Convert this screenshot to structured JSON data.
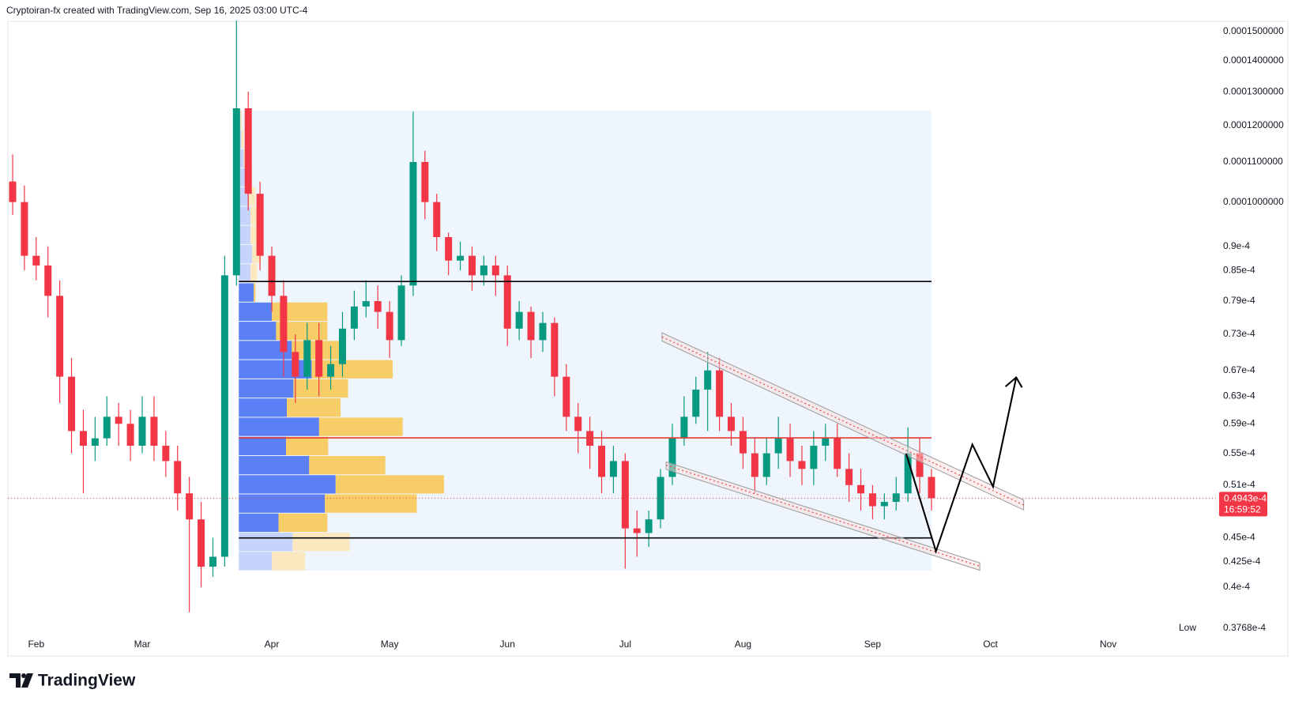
{
  "header": {
    "text": "Cryptoiran-fx created with TradingView.com, Sep 16, 2025 03:00 UTC-4"
  },
  "footer": {
    "logo": "TradingView"
  },
  "chart_data": {
    "type": "candlestick",
    "log_scale": true,
    "grid": false,
    "up_color": "#089981",
    "down_color": "#f23645",
    "categories": [
      null,
      null,
      "Feb",
      null,
      null,
      null,
      null,
      null,
      null,
      null,
      null,
      "Mar",
      null,
      null,
      null,
      null,
      null,
      null,
      null,
      null,
      null,
      null,
      "Apr",
      null,
      null,
      null,
      null,
      null,
      null,
      null,
      null,
      null,
      "May",
      null,
      null,
      null,
      null,
      null,
      null,
      null,
      null,
      null,
      "Jun",
      null,
      null,
      null,
      null,
      null,
      null,
      null,
      null,
      null,
      "Jul",
      null,
      null,
      null,
      null,
      null,
      null,
      null,
      null,
      null,
      "Aug",
      null,
      null,
      null,
      null,
      null,
      null,
      null,
      null,
      null,
      null,
      "Sep",
      null,
      null,
      null,
      null,
      null,
      null,
      null,
      null,
      null,
      "Oct",
      null,
      null,
      null,
      null,
      null,
      null,
      null,
      null,
      null,
      "Nov",
      null,
      null,
      null,
      null
    ],
    "open": [
      0.000105,
      0.0001,
      8.8e-05,
      8.6e-05,
      8e-05,
      6.6e-05,
      5.8e-05,
      5.6e-05,
      5.7e-05,
      6e-05,
      5.9e-05,
      5.6e-05,
      6e-05,
      5.6e-05,
      5.4e-05,
      5e-05,
      4.7e-05,
      4.2e-05,
      4.3e-05,
      8.4e-05,
      0.000125,
      0.000102,
      8.8e-05,
      8e-05,
      7e-05,
      6.6e-05,
      7.2e-05,
      6.6e-05,
      6.8e-05,
      7.4e-05,
      7.8e-05,
      7.9e-05,
      7.7e-05,
      7.2e-05,
      8.2e-05,
      0.00011,
      0.0001,
      9.2e-05,
      8.7e-05,
      8.8e-05,
      8.4e-05,
      8.6e-05,
      8.4e-05,
      7.4e-05,
      7.7e-05,
      7.2e-05,
      7.5e-05,
      6.6e-05,
      6e-05,
      5.8e-05,
      5.6e-05,
      5.2e-05,
      5.4e-05,
      4.6e-05,
      4.55e-05,
      4.7e-05,
      5.2e-05,
      5.7e-05,
      6e-05,
      6.4e-05,
      6.7e-05,
      6e-05,
      5.8e-05,
      5.5e-05,
      5.2e-05,
      5.5e-05,
      5.7e-05,
      5.4e-05,
      5.3e-05,
      5.6e-05,
      5.7e-05,
      5.3e-05,
      5.1e-05,
      5e-05,
      4.85e-05,
      4.9e-05,
      5e-05,
      5.5e-05,
      5.2e-05,
      null,
      null,
      null,
      null,
      null,
      null,
      null,
      null,
      null,
      null,
      null,
      null,
      null,
      null,
      null,
      null,
      null,
      null,
      null
    ],
    "high": [
      0.000112,
      0.000104,
      9.2e-05,
      9e-05,
      8.3e-05,
      6.9e-05,
      6.1e-05,
      6e-05,
      6.3e-05,
      6.2e-05,
      6.1e-05,
      6.3e-05,
      6.3e-05,
      5.8e-05,
      5.6e-05,
      5.2e-05,
      4.9e-05,
      4.5e-05,
      8.8e-05,
      0.000154,
      0.00013,
      0.000105,
      9e-05,
      8.3e-05,
      7.3e-05,
      7.5e-05,
      7.5e-05,
      7.1e-05,
      7.7e-05,
      8.1e-05,
      8.3e-05,
      8.2e-05,
      7.9e-05,
      8.4e-05,
      0.000124,
      0.000113,
      0.000102,
      9.3e-05,
      9.1e-05,
      9e-05,
      8.8e-05,
      8.8e-05,
      8.6e-05,
      7.9e-05,
      7.8e-05,
      7.7e-05,
      7.6e-05,
      6.8e-05,
      6.2e-05,
      6e-05,
      5.8e-05,
      5.6e-05,
      5.5e-05,
      4.8e-05,
      4.8e-05,
      5.3e-05,
      5.9e-05,
      6.3e-05,
      6.6e-05,
      7e-05,
      6.9e-05,
      6.2e-05,
      6e-05,
      5.7e-05,
      5.7e-05,
      6e-05,
      5.9e-05,
      5.6e-05,
      5.8e-05,
      5.9e-05,
      5.9e-05,
      5.5e-05,
      5.3e-05,
      5.1e-05,
      5e-05,
      5.2e-05,
      5.85e-05,
      5.7e-05,
      5.3e-05,
      null,
      null,
      null,
      null,
      null,
      null,
      null,
      null,
      null,
      null,
      null,
      null,
      null,
      null,
      null,
      null,
      null,
      null,
      null
    ],
    "low": [
      9.7e-05,
      8.5e-05,
      8.3e-05,
      7.6e-05,
      6.2e-05,
      5.5e-05,
      5e-05,
      5.4e-05,
      5.6e-05,
      5.6e-05,
      5.4e-05,
      5.5e-05,
      5.4e-05,
      5.2e-05,
      4.8e-05,
      3.768e-05,
      4e-05,
      4.1e-05,
      4.2e-05,
      8.2e-05,
      9.8e-05,
      8.5e-05,
      7.7e-05,
      6.6e-05,
      6.2e-05,
      6.4e-05,
      6.3e-05,
      6.4e-05,
      6.6e-05,
      7.2e-05,
      7.6e-05,
      7.4e-05,
      6.9e-05,
      7.1e-05,
      8e-05,
      9.6e-05,
      8.9e-05,
      8.4e-05,
      8.5e-05,
      8.1e-05,
      8.2e-05,
      8e-05,
      7.1e-05,
      7.2e-05,
      6.9e-05,
      7e-05,
      6.3e-05,
      5.8e-05,
      5.5e-05,
      5.3e-05,
      5e-05,
      5e-05,
      4.18e-05,
      4.3e-05,
      4.4e-05,
      4.6e-05,
      5.1e-05,
      5.6e-05,
      5.9e-05,
      5.8e-05,
      5.8e-05,
      5.6e-05,
      5.3e-05,
      5e-05,
      5.1e-05,
      5.3e-05,
      5.2e-05,
      5.1e-05,
      5.1e-05,
      5.4e-05,
      5.2e-05,
      4.9e-05,
      4.8e-05,
      4.7e-05,
      4.7e-05,
      4.8e-05,
      4.9e-05,
      5e-05,
      4.8e-05,
      null,
      null,
      null,
      null,
      null,
      null,
      null,
      null,
      null,
      null,
      null,
      null,
      null,
      null,
      null,
      null,
      null,
      null,
      null
    ],
    "close": [
      0.0001,
      8.8e-05,
      8.6e-05,
      8e-05,
      6.6e-05,
      5.8e-05,
      5.6e-05,
      5.7e-05,
      6e-05,
      5.9e-05,
      5.6e-05,
      6e-05,
      5.6e-05,
      5.4e-05,
      5e-05,
      4.7e-05,
      4.2e-05,
      4.3e-05,
      8.4e-05,
      0.000125,
      0.000102,
      8.8e-05,
      8e-05,
      7e-05,
      6.6e-05,
      7.2e-05,
      6.6e-05,
      6.8e-05,
      7.4e-05,
      7.8e-05,
      7.9e-05,
      7.7e-05,
      7.2e-05,
      8.2e-05,
      0.00011,
      0.0001,
      9.2e-05,
      8.7e-05,
      8.8e-05,
      8.4e-05,
      8.6e-05,
      8.4e-05,
      7.4e-05,
      7.7e-05,
      7.2e-05,
      7.5e-05,
      6.6e-05,
      6e-05,
      5.8e-05,
      5.6e-05,
      5.2e-05,
      5.4e-05,
      4.6e-05,
      4.55e-05,
      4.7e-05,
      5.2e-05,
      5.7e-05,
      6e-05,
      6.4e-05,
      6.7e-05,
      6e-05,
      5.8e-05,
      5.5e-05,
      5.2e-05,
      5.5e-05,
      5.7e-05,
      5.4e-05,
      5.3e-05,
      5.6e-05,
      5.7e-05,
      5.3e-05,
      5.1e-05,
      5e-05,
      4.85e-05,
      4.9e-05,
      5e-05,
      5.5e-05,
      5.2e-05,
      4.943e-05,
      null,
      null,
      null,
      null,
      null,
      null,
      null,
      null,
      null,
      null,
      null,
      null,
      null,
      null,
      null,
      null,
      null,
      null,
      null
    ],
    "last_price_label": "0.4943e-4",
    "countdown": "16:59:52",
    "low_label": "Low",
    "low_value_label": "0.3768e-4",
    "ylim": [
      3.6e-05,
      0.000158
    ],
    "yticks": [
      {
        "value": 0.00015,
        "label": "0.0001500000"
      },
      {
        "value": 0.00014,
        "label": "0.0001400000"
      },
      {
        "value": 0.00013,
        "label": "0.0001300000"
      },
      {
        "value": 0.00012,
        "label": "0.0001200000"
      },
      {
        "value": 0.00011,
        "label": "0.0001100000"
      },
      {
        "value": 0.0001,
        "label": "0.0001000000"
      },
      {
        "value": 9e-05,
        "label": "0.9e-4"
      },
      {
        "value": 8.5e-05,
        "label": "0.85e-4"
      },
      {
        "value": 7.9e-05,
        "label": "0.79e-4"
      },
      {
        "value": 7.3e-05,
        "label": "0.73e-4"
      },
      {
        "value": 6.7e-05,
        "label": "0.67e-4"
      },
      {
        "value": 6.3e-05,
        "label": "0.63e-4"
      },
      {
        "value": 5.9e-05,
        "label": "0.59e-4"
      },
      {
        "value": 5.5e-05,
        "label": "0.55e-4"
      },
      {
        "value": 5.1e-05,
        "label": "0.51e-4"
      },
      {
        "value": 4.5e-05,
        "label": "0.45e-4"
      },
      {
        "value": 4.25e-05,
        "label": "0.425e-4"
      },
      {
        "value": 4e-05,
        "label": "0.4e-4"
      }
    ],
    "levels": [
      {
        "value": 8.278e-05,
        "color": "#000000"
      },
      {
        "value": 5.706e-05,
        "color": "#e53935"
      },
      {
        "value": 4.497e-05,
        "color": "#000000"
      }
    ],
    "volume_profile": {
      "range": [
        4.16e-05,
        0.0001244
      ],
      "up": [
        40,
        65,
        48,
        104,
        117,
        85,
        57,
        97,
        58,
        66,
        88,
        64,
        45,
        40,
        18,
        14,
        16,
        14,
        14,
        12,
        10,
        6,
        3,
        2
      ],
      "down": [
        40,
        69,
        59,
        111,
        131,
        92,
        51,
        101,
        65,
        66,
        98,
        63,
        62,
        67,
        2,
        8,
        11,
        13,
        12,
        8,
        6,
        4,
        3,
        2
      ],
      "up_color": "#5b7ff4",
      "down_color": "#f6cd67",
      "up_color_light": "#c6d4fb",
      "down_color_light": "#fbe8bf",
      "area_color": "#eef5fd"
    }
  }
}
